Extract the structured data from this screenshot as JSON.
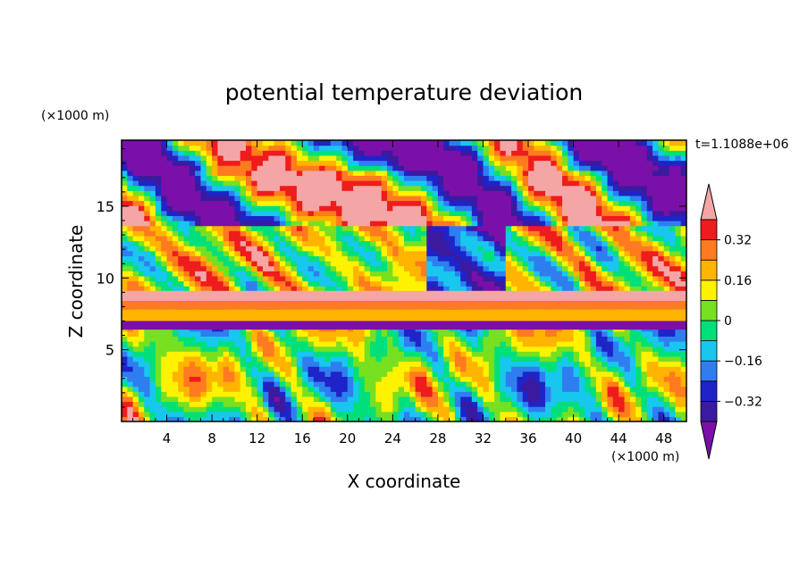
{
  "chart_data": {
    "type": "heatmap",
    "title": "potential temperature deviation",
    "xlabel": "X coordinate",
    "ylabel": "Z coordinate",
    "x_units": "(×1000 m)",
    "y_units": "(×1000 m)",
    "time_label": "t=1.1088e+06",
    "xlim": [
      0,
      50
    ],
    "ylim": [
      0,
      19.6
    ],
    "x_ticks": [
      4,
      8,
      12,
      16,
      20,
      24,
      28,
      32,
      36,
      40,
      44,
      48
    ],
    "y_ticks": [
      5,
      10,
      15
    ],
    "grid": false,
    "colorbar": {
      "placement": "right",
      "extend": "both",
      "labels": [
        "0.32",
        "0.16",
        "0",
        "−0.16",
        "−0.32"
      ],
      "label_values": [
        0.32,
        0.16,
        0,
        -0.16,
        -0.32
      ],
      "levels": [
        -0.4,
        -0.32,
        -0.24,
        -0.16,
        -0.08,
        0,
        0.08,
        0.16,
        0.24,
        0.32,
        0.4
      ],
      "colors": [
        "#7a10a8",
        "#3c1aa0",
        "#1e24c8",
        "#2f7ef0",
        "#18c7ee",
        "#00e07a",
        "#77e020",
        "#fff200",
        "#ffb400",
        "#ff7a20",
        "#ee1c1c",
        "#f4a6a6"
      ]
    },
    "bands": [
      {
        "z": [
          6.4,
          7.0
        ],
        "value": -0.46
      },
      {
        "z": [
          7.0,
          7.8
        ],
        "value": 0.16
      },
      {
        "z": [
          7.8,
          8.4
        ],
        "value": 0.3
      },
      {
        "z": [
          8.4,
          9.1
        ],
        "value": 0.46
      }
    ]
  }
}
